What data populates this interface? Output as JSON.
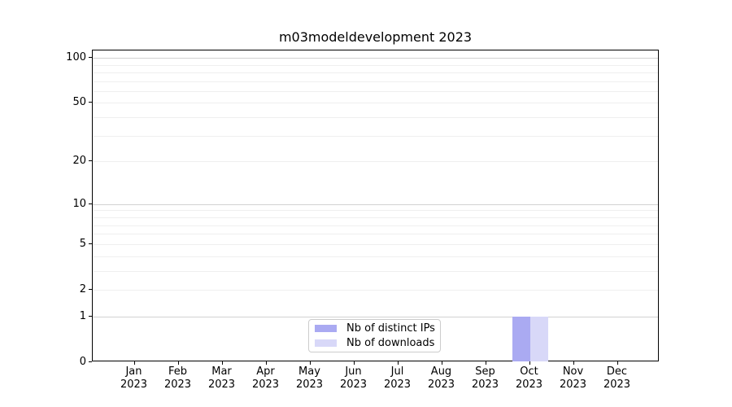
{
  "chart_data": {
    "type": "bar",
    "title": "m03modeldevelopment 2023",
    "x_tick_months": [
      "Jan",
      "Feb",
      "Mar",
      "Apr",
      "May",
      "Jun",
      "Jul",
      "Aug",
      "Sep",
      "Oct",
      "Nov",
      "Dec"
    ],
    "x_tick_year": "2023",
    "series": [
      {
        "name": "Nb of distinct IPs",
        "color": "#aaaaf2",
        "values": [
          0,
          0,
          0,
          0,
          0,
          0,
          0,
          0,
          0,
          1,
          0,
          0
        ]
      },
      {
        "name": "Nb of downloads",
        "color": "#d8d8f8",
        "values": [
          0,
          0,
          0,
          0,
          0,
          0,
          0,
          0,
          0,
          1,
          0,
          0
        ]
      }
    ],
    "y_scale": "log1p",
    "ylim": [
      0,
      112
    ],
    "y_ticks": [
      0,
      1,
      2,
      5,
      10,
      20,
      50,
      100
    ],
    "grid": {
      "major": [
        1,
        10,
        100
      ],
      "minor": [
        2,
        3,
        4,
        5,
        6,
        7,
        8,
        9,
        20,
        30,
        40,
        50,
        60,
        70,
        80,
        90
      ]
    },
    "legend_position": "lower center",
    "colors": {
      "major_grid": "#d2d2d2",
      "minor_grid": "#efefef",
      "axis": "#000000",
      "background": "#ffffff"
    }
  }
}
